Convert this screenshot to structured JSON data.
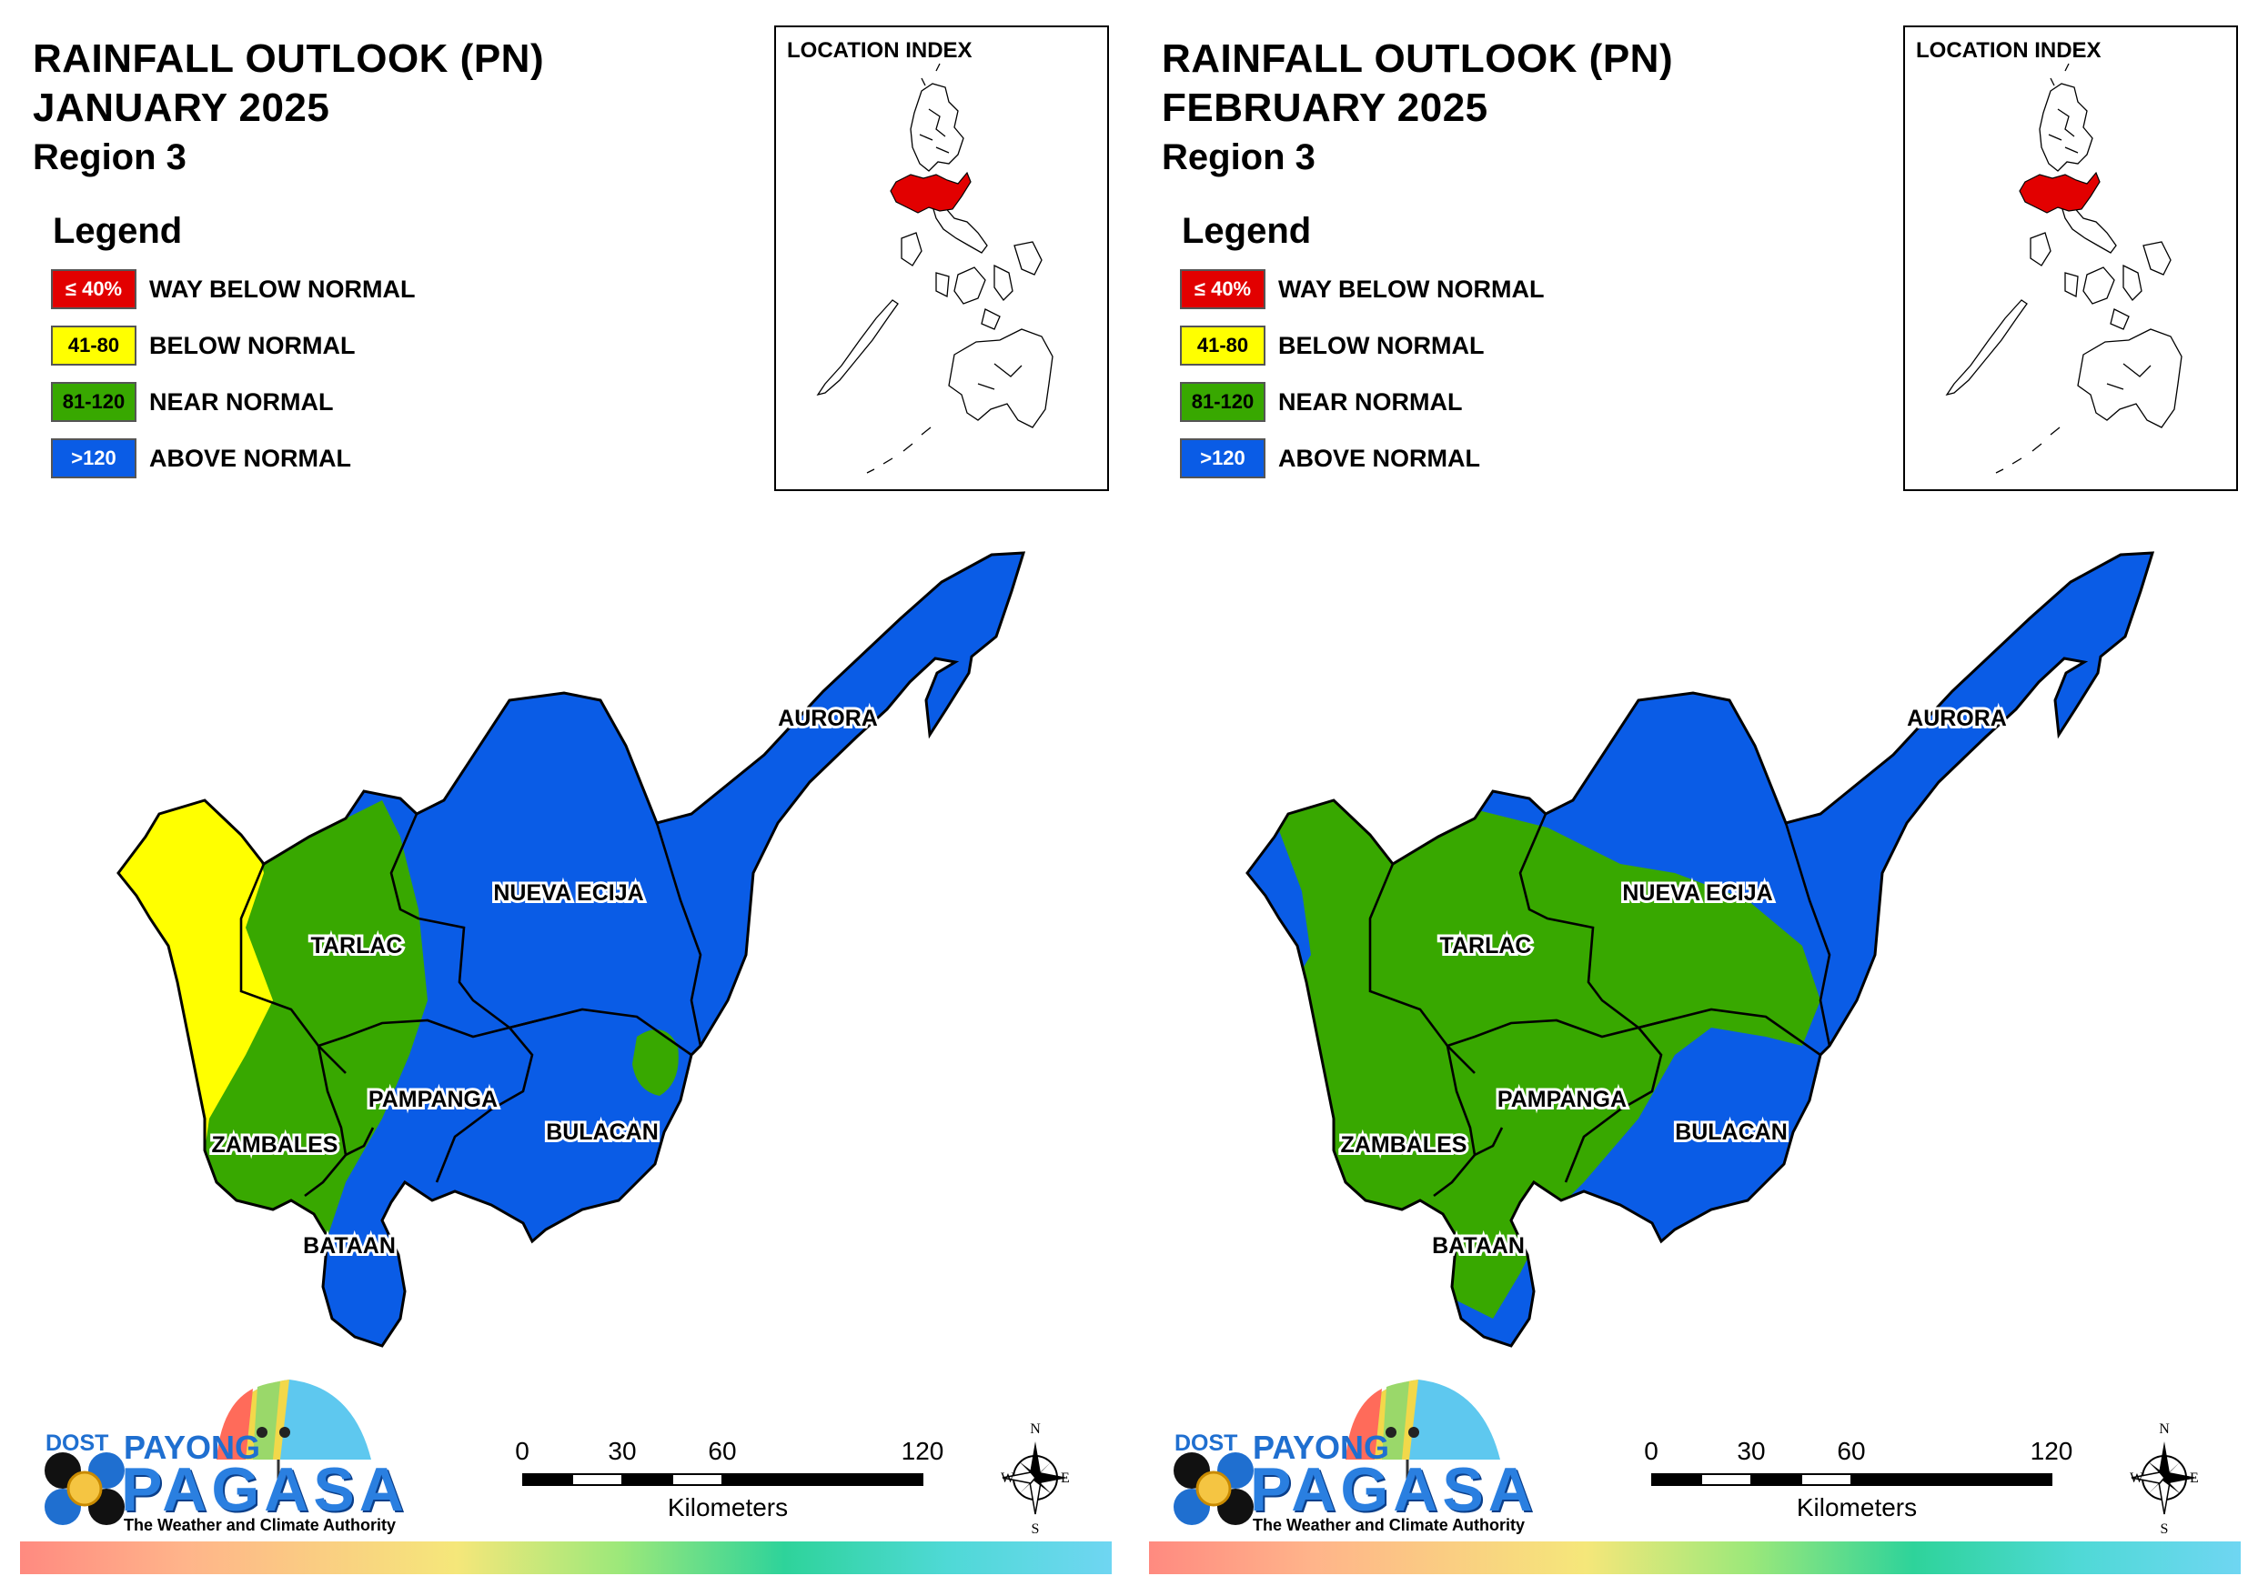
{
  "legend": {
    "title": "Legend",
    "items": [
      {
        "range": "≤ 40%",
        "label": "WAY BELOW NORMAL",
        "color": "#e20000",
        "text_color": "#ffffff"
      },
      {
        "range": "41-80",
        "label": "BELOW NORMAL",
        "color": "#ffff00",
        "text_color": "#000000"
      },
      {
        "range": "81-120",
        "label": "NEAR NORMAL",
        "color": "#38a800",
        "text_color": "#000000"
      },
      {
        "range": ">120",
        "label": "ABOVE NORMAL",
        "color": "#0a5ce6",
        "text_color": "#ffffff"
      }
    ]
  },
  "index": {
    "title": "LOCATION INDEX",
    "highlight_color": "#e20000"
  },
  "provinces": {
    "aurora": "AURORA",
    "nueva_ecija": "NUEVA ECIJA",
    "tarlac": "TARLAC",
    "pampanga": "PAMPANGA",
    "bulacan": "BULACAN",
    "zambales": "ZAMBALES",
    "bataan": "BATAAN"
  },
  "maps": [
    {
      "title_line1": "RAINFALL OUTLOOK (PN)",
      "title_line2": "JANUARY 2025",
      "title_line3": "Region 3",
      "outlook": {
        "aurora": "ABOVE NORMAL",
        "nueva_ecija": "ABOVE NORMAL",
        "bulacan": "ABOVE NORMAL",
        "pampanga": "ABOVE NORMAL",
        "tarlac": "NEAR NORMAL",
        "zambales": "BELOW NORMAL / NEAR NORMAL",
        "bataan": "ABOVE NORMAL"
      }
    },
    {
      "title_line1": "RAINFALL OUTLOOK (PN)",
      "title_line2": "FEBRUARY 2025",
      "title_line3": "Region 3",
      "outlook": {
        "aurora": "ABOVE NORMAL",
        "nueva_ecija": "NEAR NORMAL / ABOVE NORMAL",
        "bulacan": "ABOVE NORMAL",
        "pampanga": "NEAR NORMAL",
        "tarlac": "NEAR NORMAL",
        "zambales": "NEAR NORMAL",
        "bataan": "NEAR NORMAL"
      }
    }
  ],
  "scale": {
    "ticks": [
      "0",
      "30",
      "60",
      "120"
    ],
    "units": "Kilometers"
  },
  "compass": {
    "n": "N",
    "s": "S",
    "e": "E",
    "w": "W"
  },
  "logo": {
    "dost": "DOST",
    "payong": "PAYONG",
    "pagasa": "PAGASA",
    "tagline": "The Weather and Climate Authority"
  }
}
